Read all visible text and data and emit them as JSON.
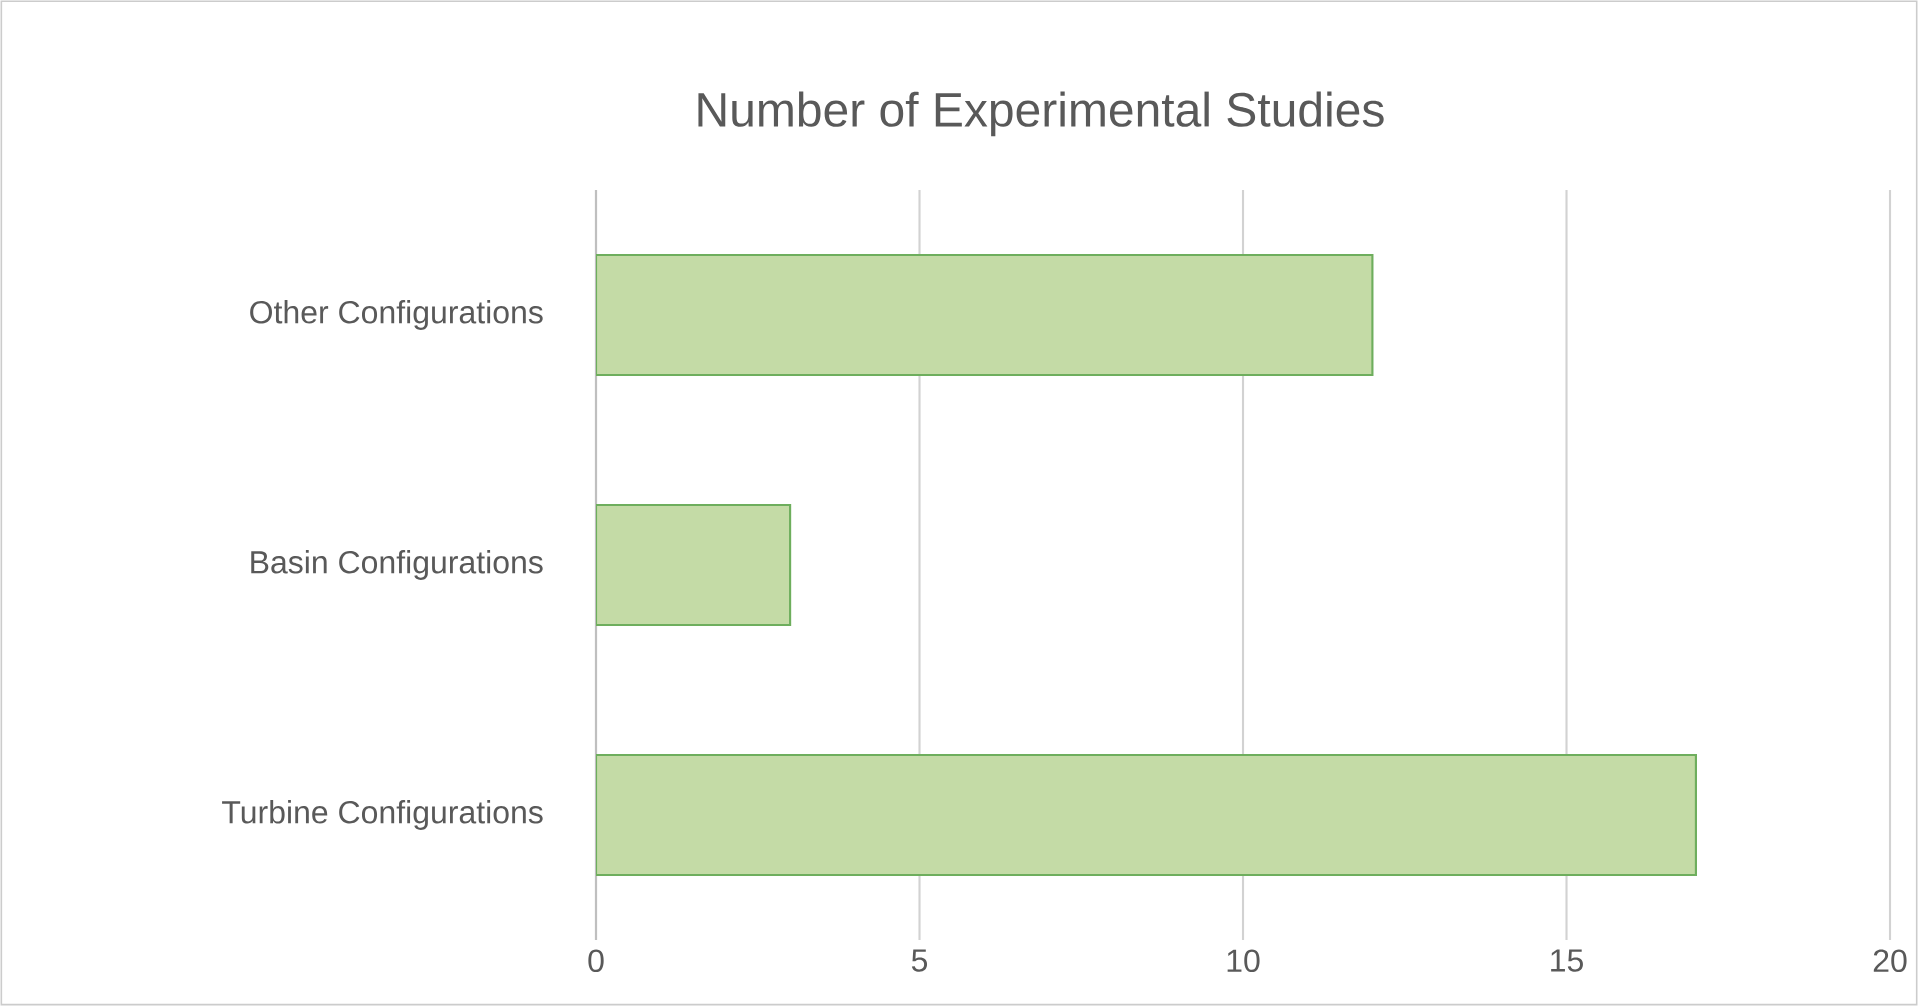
{
  "chart_data": {
    "type": "bar",
    "orientation": "horizontal",
    "title": "Number of Experimental Studies",
    "categories": [
      "Other Configurations",
      "Basin Configurations",
      "Turbine Configurations"
    ],
    "values": [
      12,
      3,
      17
    ],
    "color": "#c4dba6",
    "xlim": [
      0,
      20
    ],
    "xticks": [
      0,
      5,
      10,
      15,
      20
    ],
    "grid": "x"
  }
}
